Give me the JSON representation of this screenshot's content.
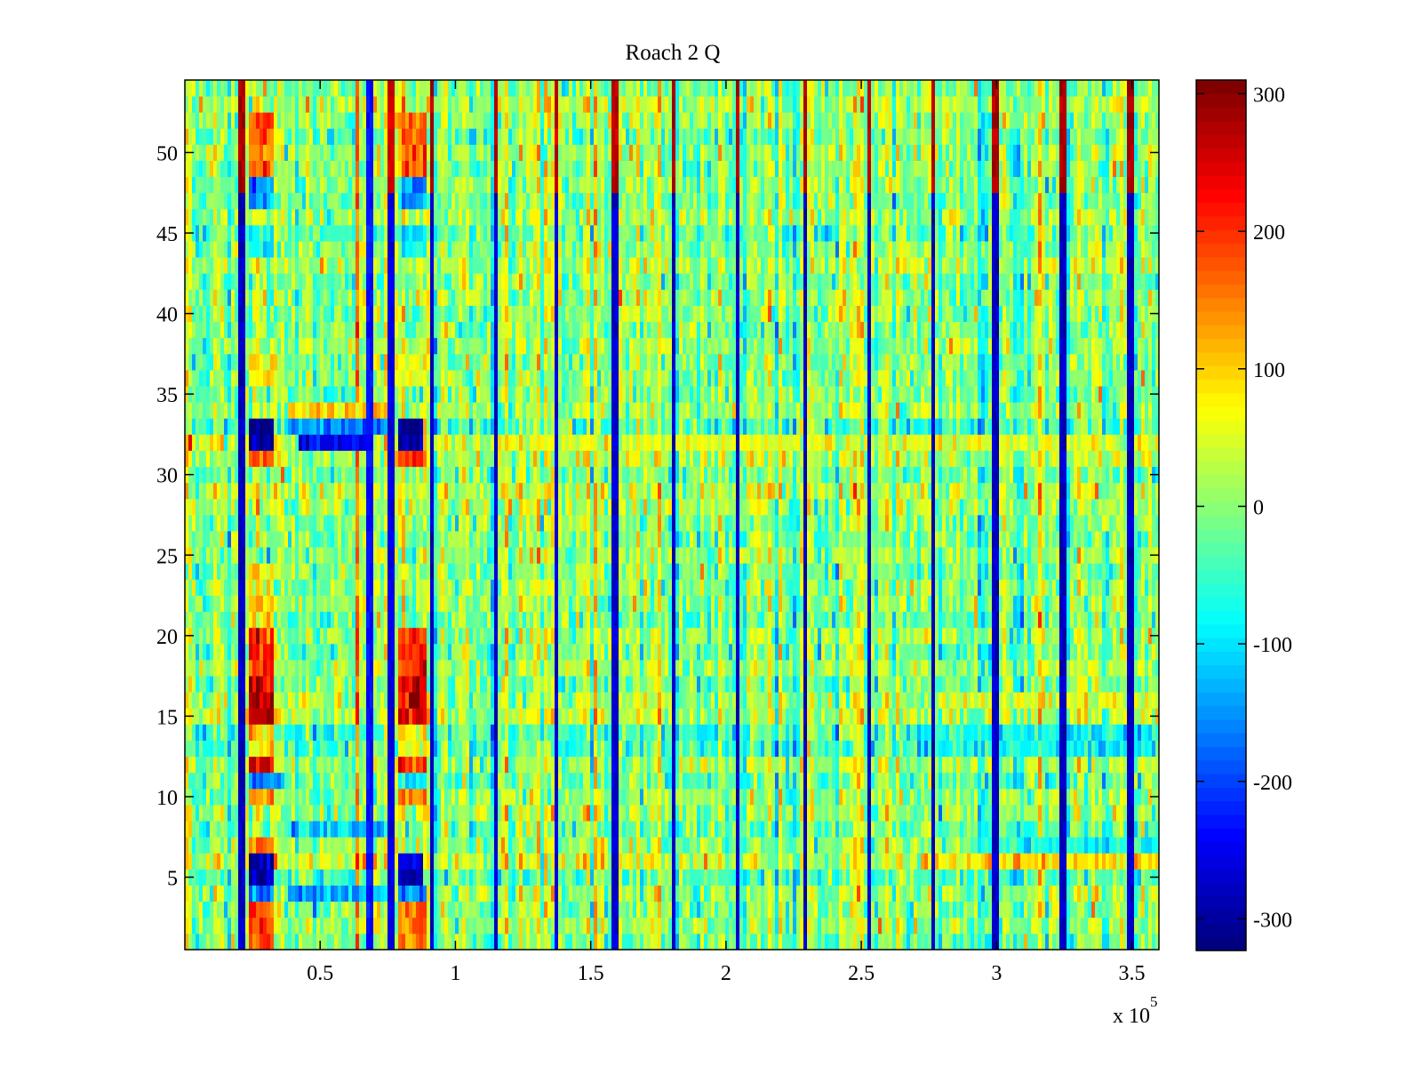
{
  "chart_data": {
    "type": "heatmap",
    "title": "Roach 2 Q",
    "xlabel": "",
    "ylabel": "",
    "x_exponent_label": "x 10",
    "x_exponent_power": "5",
    "xlim": [
      0,
      3.6
    ],
    "ylim": [
      0.5,
      54.5
    ],
    "x_ticks": [
      0.5,
      1,
      1.5,
      2,
      2.5,
      3,
      3.5
    ],
    "x_tick_labels": [
      "0.5",
      "1",
      "1.5",
      "2",
      "2.5",
      "3",
      "3.5"
    ],
    "y_ticks": [
      5,
      10,
      15,
      20,
      25,
      30,
      35,
      40,
      45,
      50
    ],
    "y_tick_labels": [
      "5",
      "10",
      "15",
      "20",
      "25",
      "30",
      "35",
      "40",
      "45",
      "50"
    ],
    "rows": 54,
    "columns": 274,
    "colormap": "jet",
    "colormap_levels": 64,
    "clim": [
      -323,
      310
    ],
    "colorbar": {
      "ticks": [
        -300,
        -200,
        -100,
        0,
        100,
        200,
        300
      ],
      "tick_labels": [
        "-300",
        "-200",
        "-100",
        "0",
        "100",
        "200",
        "300"
      ],
      "placement": "right"
    },
    "noise": {
      "seed": 20240,
      "mean": 0,
      "spread": 70
    },
    "row_offsets": [
      {
        "row": 1,
        "value": -10
      },
      {
        "row": 2,
        "value": 10
      },
      {
        "row": 3,
        "value": 0
      },
      {
        "row": 4,
        "value": 15
      },
      {
        "row": 5,
        "value": -30
      },
      {
        "row": 6,
        "value": 40
      },
      {
        "row": 7,
        "value": 5
      },
      {
        "row": 8,
        "value": -20
      },
      {
        "row": 9,
        "value": 10
      },
      {
        "row": 10,
        "value": 5
      },
      {
        "row": 11,
        "value": -15
      },
      {
        "row": 12,
        "value": 15
      },
      {
        "row": 13,
        "value": -40
      },
      {
        "row": 14,
        "value": -50
      },
      {
        "row": 15,
        "value": 25
      },
      {
        "row": 16,
        "value": 10
      },
      {
        "row": 17,
        "value": -10
      },
      {
        "row": 18,
        "value": 15
      },
      {
        "row": 19,
        "value": -5
      },
      {
        "row": 20,
        "value": 10
      },
      {
        "row": 21,
        "value": -15
      },
      {
        "row": 22,
        "value": 5
      },
      {
        "row": 23,
        "value": 0
      },
      {
        "row": 24,
        "value": -10
      },
      {
        "row": 25,
        "value": 10
      },
      {
        "row": 26,
        "value": -5
      },
      {
        "row": 27,
        "value": 0
      },
      {
        "row": 28,
        "value": 20
      },
      {
        "row": 29,
        "value": 30
      },
      {
        "row": 30,
        "value": -15
      },
      {
        "row": 31,
        "value": 25
      },
      {
        "row": 32,
        "value": 60
      },
      {
        "row": 33,
        "value": -40
      },
      {
        "row": 34,
        "value": 10
      },
      {
        "row": 35,
        "value": -5
      },
      {
        "row": 36,
        "value": 5
      },
      {
        "row": 37,
        "value": -10
      },
      {
        "row": 38,
        "value": 10
      },
      {
        "row": 39,
        "value": -5
      },
      {
        "row": 40,
        "value": 0
      },
      {
        "row": 41,
        "value": 10
      },
      {
        "row": 42,
        "value": -10
      },
      {
        "row": 43,
        "value": 25
      },
      {
        "row": 44,
        "value": 5
      },
      {
        "row": 45,
        "value": -20
      },
      {
        "row": 46,
        "value": 15
      },
      {
        "row": 47,
        "value": -10
      },
      {
        "row": 48,
        "value": 5
      },
      {
        "row": 49,
        "value": -5
      },
      {
        "row": 50,
        "value": 10
      },
      {
        "row": 51,
        "value": -10
      },
      {
        "row": 52,
        "value": 5
      },
      {
        "row": 53,
        "value": 25
      },
      {
        "row": 54,
        "value": 0
      }
    ],
    "stripes": [
      {
        "x": 0.207,
        "upper": 300,
        "lower": -300
      },
      {
        "x": 0.682,
        "upper": -250,
        "lower": -250
      },
      {
        "x": 0.761,
        "upper": 280,
        "lower": -280
      },
      {
        "x": 0.911,
        "upper": 300,
        "lower": -300
      },
      {
        "x": 1.151,
        "upper": 300,
        "lower": -300
      },
      {
        "x": 1.37,
        "upper": 280,
        "lower": -280
      },
      {
        "x": 1.587,
        "upper": 290,
        "lower": -290
      },
      {
        "x": 1.807,
        "upper": 300,
        "lower": -300
      },
      {
        "x": 2.043,
        "upper": 300,
        "lower": -300
      },
      {
        "x": 2.295,
        "upper": 300,
        "lower": -300
      },
      {
        "x": 2.528,
        "upper": 290,
        "lower": -290
      },
      {
        "x": 2.764,
        "upper": 300,
        "lower": -300
      },
      {
        "x": 2.993,
        "upper": 300,
        "lower": -300
      },
      {
        "x": 3.246,
        "upper": 300,
        "lower": -300
      },
      {
        "x": 3.492,
        "upper": 300,
        "lower": -300
      }
    ],
    "stripe_split_row": 48,
    "blocks": [
      {
        "x": [
          0.23,
          0.33
        ],
        "rows": [
          49,
          52
        ],
        "value": 170
      },
      {
        "x": [
          0.79,
          0.89
        ],
        "rows": [
          49,
          52
        ],
        "value": 160
      },
      {
        "x": [
          0.23,
          0.33
        ],
        "rows": [
          47,
          48
        ],
        "value": -150
      },
      {
        "x": [
          0.79,
          0.89
        ],
        "rows": [
          47,
          48
        ],
        "value": -140
      },
      {
        "x": [
          0.23,
          0.33
        ],
        "rows": [
          44,
          45
        ],
        "value": -90
      },
      {
        "x": [
          0.79,
          0.89
        ],
        "rows": [
          44,
          45
        ],
        "value": -80
      },
      {
        "x": [
          0.23,
          0.33
        ],
        "rows": [
          36,
          37
        ],
        "value": 80
      },
      {
        "x": [
          0.79,
          0.89
        ],
        "rows": [
          36,
          37
        ],
        "value": 70
      },
      {
        "x": [
          0.38,
          0.77
        ],
        "rows": [
          34,
          34
        ],
        "value": 90
      },
      {
        "x": [
          0.24,
          0.33
        ],
        "rows": [
          32,
          33
        ],
        "value": -320
      },
      {
        "x": [
          0.79,
          0.88
        ],
        "rows": [
          32,
          33
        ],
        "value": -320
      },
      {
        "x": [
          0.38,
          0.77
        ],
        "rows": [
          33,
          33
        ],
        "value": -160
      },
      {
        "x": [
          0.42,
          0.68
        ],
        "rows": [
          32,
          32
        ],
        "value": -230
      },
      {
        "x": [
          0.23,
          0.33
        ],
        "rows": [
          31,
          31
        ],
        "value": 190
      },
      {
        "x": [
          0.79,
          0.89
        ],
        "rows": [
          31,
          31
        ],
        "value": 190
      },
      {
        "x": [
          0.23,
          0.33
        ],
        "rows": [
          21,
          24
        ],
        "value": 90
      },
      {
        "x": [
          0.23,
          0.33
        ],
        "rows": [
          18,
          20
        ],
        "value": 220
      },
      {
        "x": [
          0.79,
          0.89
        ],
        "rows": [
          18,
          20
        ],
        "value": 200
      },
      {
        "x": [
          0.23,
          0.33
        ],
        "rows": [
          15,
          17
        ],
        "value": 250
      },
      {
        "x": [
          0.79,
          0.89
        ],
        "rows": [
          15,
          17
        ],
        "value": 260
      },
      {
        "x": [
          0.23,
          0.33
        ],
        "rows": [
          13,
          14
        ],
        "value": 110
      },
      {
        "x": [
          0.79,
          0.89
        ],
        "rows": [
          13,
          14
        ],
        "value": 90
      },
      {
        "x": [
          0.23,
          0.33
        ],
        "rows": [
          12,
          12
        ],
        "value": 250
      },
      {
        "x": [
          0.79,
          0.89
        ],
        "rows": [
          12,
          12
        ],
        "value": 200
      },
      {
        "x": [
          0.23,
          0.37
        ],
        "rows": [
          11,
          11
        ],
        "value": -150
      },
      {
        "x": [
          0.79,
          0.89
        ],
        "rows": [
          11,
          11
        ],
        "value": -100
      },
      {
        "x": [
          0.23,
          0.33
        ],
        "rows": [
          10,
          10
        ],
        "value": 140
      },
      {
        "x": [
          0.79,
          0.89
        ],
        "rows": [
          10,
          10
        ],
        "value": 130
      },
      {
        "x": [
          0.38,
          0.77
        ],
        "rows": [
          8,
          8
        ],
        "value": -120
      },
      {
        "x": [
          0.23,
          0.33
        ],
        "rows": [
          6,
          7
        ],
        "value": 150
      },
      {
        "x": [
          0.24,
          0.33
        ],
        "rows": [
          5,
          6
        ],
        "value": -290
      },
      {
        "x": [
          0.79,
          0.88
        ],
        "rows": [
          5,
          6
        ],
        "value": -270
      },
      {
        "x": [
          0.23,
          0.33
        ],
        "rows": [
          4,
          4
        ],
        "value": -170
      },
      {
        "x": [
          0.79,
          0.89
        ],
        "rows": [
          4,
          4
        ],
        "value": -170
      },
      {
        "x": [
          0.38,
          0.77
        ],
        "rows": [
          4,
          4
        ],
        "value": -140
      },
      {
        "x": [
          0.23,
          0.33
        ],
        "rows": [
          1,
          3
        ],
        "value": 170
      },
      {
        "x": [
          0.79,
          0.89
        ],
        "rows": [
          1,
          3
        ],
        "value": 160
      },
      {
        "x": [
          2.72,
          3.6
        ],
        "rows": [
          13,
          14
        ],
        "value": -80
      },
      {
        "x": [
          2.9,
          3.6
        ],
        "rows": [
          7,
          7
        ],
        "value": -70
      },
      {
        "x": [
          2.72,
          3.6
        ],
        "rows": [
          6,
          6
        ],
        "value": 90
      },
      {
        "x": [
          2.72,
          3.6
        ],
        "rows": [
          16,
          16
        ],
        "value": 50
      },
      {
        "x": [
          0.9,
          3.6
        ],
        "rows": [
          32,
          32
        ],
        "value": 50
      }
    ]
  }
}
